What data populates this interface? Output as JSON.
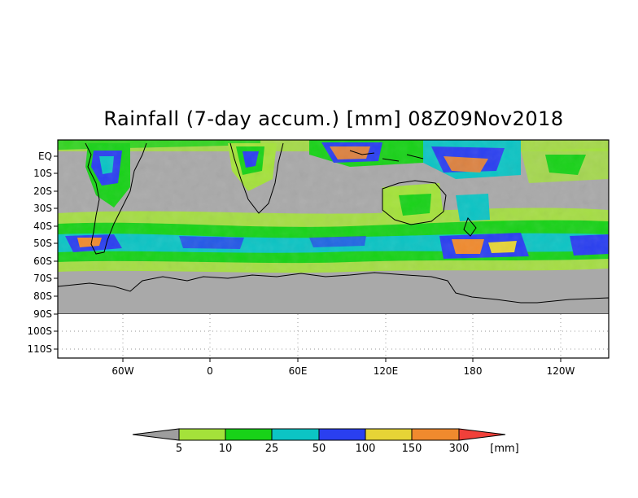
{
  "title": "Rainfall (7-day accum.) [mm] 08Z09Nov2018",
  "map": {
    "lat_labels": [
      "EQ",
      "10S",
      "20S",
      "30S",
      "40S",
      "50S",
      "60S",
      "70S",
      "80S",
      "90S",
      "100S",
      "110S"
    ],
    "lon_labels": [
      "60W",
      "0",
      "60E",
      "120E",
      "180",
      "120W"
    ],
    "ocean_color": "#a9a9a9",
    "extent_note": ""
  },
  "colorbar": {
    "ticks": [
      "5",
      "10",
      "25",
      "50",
      "100",
      "150",
      "300"
    ],
    "unit": "[mm]",
    "bins": [
      {
        "color": "#9e9e9e"
      },
      {
        "color": "#a4e23a"
      },
      {
        "color": "#18d218"
      },
      {
        "color": "#0cc4c4"
      },
      {
        "color": "#2a3ff0"
      },
      {
        "color": "#e6d436"
      },
      {
        "color": "#f08a2e"
      },
      {
        "color": "#f0403a"
      }
    ]
  }
}
